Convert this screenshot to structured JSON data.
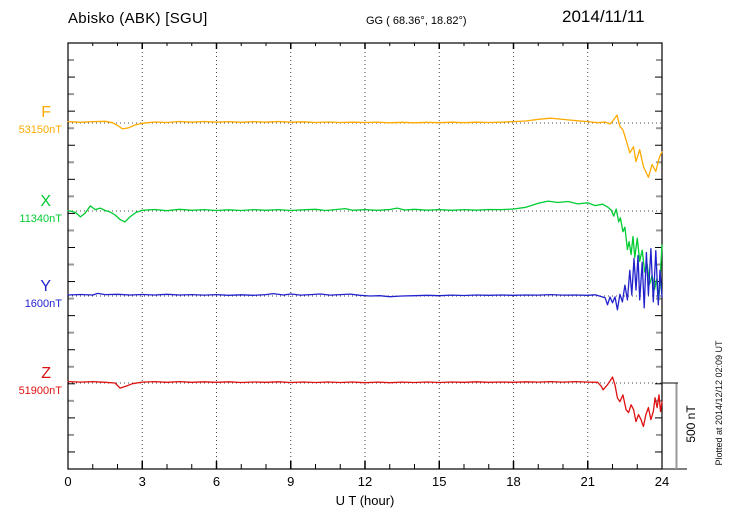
{
  "header": {
    "title": "Abisko (ABK)  [SGU]",
    "coords": "GG ( 68.36°,  18.82°)",
    "date": "2014/11/11"
  },
  "x_axis": {
    "tick_labels": [
      "0",
      "3",
      "6",
      "9",
      "12",
      "15",
      "18",
      "21",
      "24"
    ],
    "label": "U T (hour)"
  },
  "scale_bar_label": "500 nT",
  "plotted_at": "Plotted at 2014/12/12 02:09 UT",
  "chart_data": {
    "type": "line",
    "title": "Abisko (ABK) [SGU] magnetogram",
    "date": "2014/11/11",
    "station_coords_label": "GG ( 68.36°,  18.82°)",
    "xlabel": "U T (hour)",
    "xlim": [
      0,
      24
    ],
    "x_major_ticks": [
      0,
      3,
      6,
      9,
      12,
      15,
      18,
      21,
      24
    ],
    "x_minor_step_hours": 1,
    "y_scale_reference_nT": 500,
    "grid": "dotted vertical at 3-hour marks, dotted horizontal baseline per trace",
    "legend_position": "left margin, one colored label per trace",
    "series": [
      {
        "name": "F",
        "baseline_label": "53150nT",
        "baseline_nT": 53150,
        "color": "#FFAA00",
        "points_hour_offsetnT": [
          0,
          8,
          0.5,
          4,
          1,
          8,
          1.5,
          10,
          1.8,
          2,
          2,
          -14,
          2.2,
          -35,
          2.45,
          -28,
          2.7,
          -12,
          3,
          -2,
          3.5,
          6,
          4,
          3,
          4.5,
          9,
          5,
          5,
          5.5,
          9,
          6,
          5,
          6.5,
          8,
          7,
          4,
          7.5,
          8,
          8,
          5,
          8.5,
          9,
          9,
          5,
          9.5,
          7,
          10,
          3,
          10.5,
          6,
          11,
          3,
          11.5,
          5,
          12,
          3,
          12.5,
          5,
          13,
          1,
          13.5,
          4,
          14,
          1,
          14.5,
          4,
          15,
          2,
          15.5,
          5,
          16,
          2,
          16.5,
          5,
          17,
          3,
          17.5,
          5,
          18,
          8,
          18.5,
          12,
          19,
          22,
          19.5,
          28,
          19.8,
          24,
          20.2,
          18,
          20.6,
          13,
          21,
          8,
          21.4,
          2,
          21.7,
          6,
          21.9,
          -6,
          22,
          10,
          22.18,
          46,
          22.3,
          -20,
          22.42,
          -40,
          22.55,
          -100,
          22.7,
          -175,
          22.85,
          -140,
          22.95,
          -227,
          23.1,
          -157,
          23.25,
          -256,
          23.45,
          -320,
          23.6,
          -244,
          23.75,
          -285,
          23.9,
          -200,
          24,
          -170
        ]
      },
      {
        "name": "X",
        "baseline_label": "11340nT",
        "baseline_nT": 11340,
        "color": "#00CC33",
        "points_hour_offsetnT": [
          0,
          3,
          0.3,
          -8,
          0.5,
          -35,
          0.7,
          -12,
          0.9,
          30,
          1.1,
          8,
          1.3,
          17,
          1.5,
          3,
          1.7,
          -6,
          1.9,
          -23,
          2.1,
          -50,
          2.3,
          -64,
          2.5,
          -35,
          2.75,
          -8,
          3,
          4,
          3.5,
          9,
          4,
          2,
          4.5,
          10,
          5,
          4,
          5.5,
          8,
          6,
          3,
          6.5,
          7,
          7,
          3,
          7.5,
          8,
          8,
          4,
          8.5,
          8,
          9,
          3,
          9.5,
          7,
          10,
          10,
          10.4,
          3,
          10.8,
          8,
          11.2,
          14,
          11.5,
          4,
          12,
          8,
          12.5,
          4,
          13,
          9,
          13.3,
          17,
          13.6,
          6,
          14,
          10,
          14.5,
          5,
          15,
          8,
          15.5,
          4,
          16,
          8,
          16.5,
          5,
          17,
          9,
          17.5,
          8,
          18,
          12,
          18.5,
          22,
          19,
          46,
          19.4,
          58,
          19.8,
          50,
          20.2,
          56,
          20.6,
          42,
          21,
          48,
          21.3,
          32,
          21.6,
          40,
          21.8,
          24,
          21.95,
          5,
          22.05,
          -30,
          22.15,
          12,
          22.25,
          -64,
          22.32,
          -40,
          22.42,
          -122,
          22.5,
          -95,
          22.6,
          -227,
          22.67,
          -180,
          22.75,
          -256,
          22.83,
          -150,
          22.9,
          -273,
          23,
          -160,
          23.1,
          -296,
          23.2,
          -230,
          23.3,
          -360,
          23.4,
          -310,
          23.5,
          -430,
          23.6,
          -380,
          23.7,
          -460,
          23.78,
          -400,
          23.85,
          -535,
          23.9,
          -470,
          23.96,
          -300,
          24,
          -200
        ]
      },
      {
        "name": "Y",
        "baseline_label": "1600nT",
        "baseline_nT": 1600,
        "color": "#2222CC",
        "points_hour_offsetnT": [
          0,
          6,
          0.5,
          9,
          1,
          6,
          1.2,
          15,
          1.5,
          8,
          2,
          10,
          2.5,
          6,
          3,
          9,
          3.5,
          6,
          4,
          10,
          4.5,
          6,
          5,
          8,
          5.5,
          5,
          6,
          8,
          6.5,
          4,
          7,
          7,
          7.5,
          4,
          8,
          8,
          8.3,
          14,
          8.7,
          6,
          9,
          12,
          9.4,
          5,
          9.8,
          8,
          10.2,
          12,
          10.6,
          5,
          11,
          8,
          11.4,
          11,
          11.8,
          4,
          12.2,
          0,
          12.6,
          2,
          13,
          -4,
          13.5,
          0,
          14,
          2,
          14.5,
          4,
          15,
          2,
          15.5,
          5,
          16,
          3,
          16.5,
          6,
          17,
          4,
          17.5,
          6,
          18,
          4,
          18.5,
          6,
          19,
          5,
          19.5,
          8,
          20,
          5,
          20.5,
          6,
          21,
          4,
          21.3,
          7,
          21.7,
          -10,
          21.8,
          -52,
          21.9,
          -6,
          22,
          -40,
          22.1,
          -5,
          22.2,
          -81,
          22.3,
          10,
          22.4,
          -35,
          22.5,
          64,
          22.6,
          -23,
          22.7,
          151,
          22.78,
          6,
          22.87,
          221,
          22.95,
          35,
          23.03,
          238,
          23.1,
          -23,
          23.2,
          198,
          23.28,
          -70,
          23.37,
          256,
          23.45,
          6,
          23.55,
          279,
          23.65,
          -35,
          23.75,
          267,
          23.85,
          -52,
          23.92,
          151,
          24,
          -6
        ]
      },
      {
        "name": "Z",
        "baseline_label": "51900nT",
        "baseline_nT": 51900,
        "color": "#DD1111",
        "points_hour_offsetnT": [
          0,
          8,
          0.5,
          5,
          1,
          8,
          1.5,
          4,
          1.9,
          0,
          2.1,
          -30,
          2.35,
          -18,
          2.6,
          -4,
          3,
          5,
          3.5,
          8,
          4,
          4,
          4.5,
          8,
          5,
          4,
          5.5,
          7,
          6,
          4,
          6.5,
          7,
          7,
          3,
          7.5,
          6,
          8,
          4,
          8.5,
          7,
          9,
          3,
          9.5,
          6,
          10,
          3,
          10.5,
          6,
          11,
          3,
          11.5,
          6,
          12,
          2,
          12.5,
          5,
          13,
          2,
          13.5,
          5,
          14,
          3,
          14.5,
          6,
          15,
          3,
          15.5,
          6,
          16,
          4,
          16.5,
          7,
          17,
          4,
          17.5,
          6,
          18,
          4,
          18.5,
          7,
          19,
          5,
          19.5,
          8,
          20,
          5,
          20.5,
          8,
          21,
          5,
          21.4,
          4,
          21.55,
          -20,
          21.62,
          -40,
          21.8,
          -10,
          21.9,
          12,
          22,
          35,
          22.1,
          -12,
          22.2,
          -87,
          22.3,
          -110,
          22.42,
          -70,
          22.55,
          -157,
          22.65,
          -174,
          22.75,
          -128,
          22.85,
          -155,
          22.95,
          -227,
          23.05,
          -186,
          23.15,
          -215,
          23.25,
          -256,
          23.35,
          -186,
          23.45,
          -145,
          23.55,
          -215,
          23.65,
          -168,
          23.72,
          -87,
          23.8,
          -145,
          23.88,
          -70,
          23.94,
          -168,
          24,
          -110
        ]
      }
    ]
  }
}
